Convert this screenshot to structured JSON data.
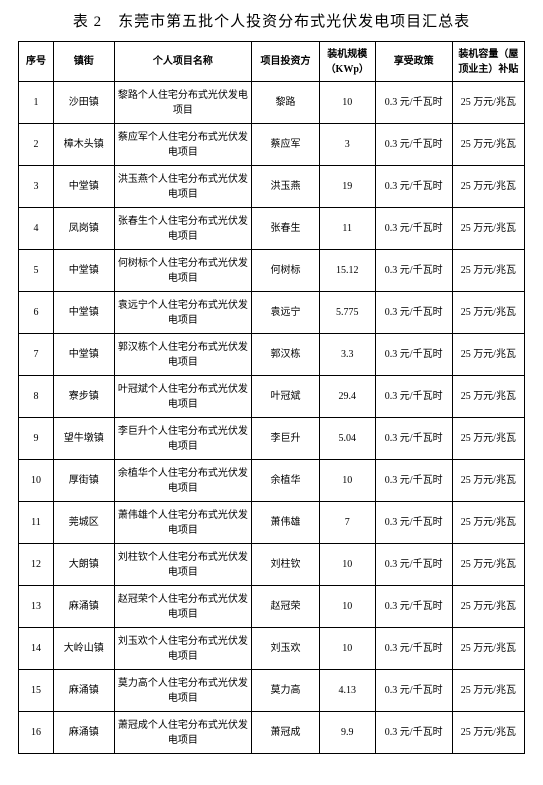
{
  "title": "表 2　东莞市第五批个人投资分布式光伏发电项目汇总表",
  "columns": [
    "序号",
    "镇街",
    "个人项目名称",
    "项目投资方",
    "装机规模（KWp）",
    "享受政策",
    "装机容量（屋顶业主）补贴"
  ],
  "rows": [
    {
      "seq": "1",
      "town": "沙田镇",
      "name": "黎路个人住宅分布式光伏发电项目",
      "investor": "黎路",
      "cap": "10",
      "policy": "0.3 元/千瓦时",
      "subsidy": "25 万元/兆瓦"
    },
    {
      "seq": "2",
      "town": "樟木头镇",
      "name": "蔡应军个人住宅分布式光伏发电项目",
      "investor": "蔡应军",
      "cap": "3",
      "policy": "0.3 元/千瓦时",
      "subsidy": "25 万元/兆瓦"
    },
    {
      "seq": "3",
      "town": "中堂镇",
      "name": "洪玉燕个人住宅分布式光伏发电项目",
      "investor": "洪玉燕",
      "cap": "19",
      "policy": "0.3 元/千瓦时",
      "subsidy": "25 万元/兆瓦"
    },
    {
      "seq": "4",
      "town": "凤岗镇",
      "name": "张春生个人住宅分布式光伏发电项目",
      "investor": "张春生",
      "cap": "11",
      "policy": "0.3 元/千瓦时",
      "subsidy": "25 万元/兆瓦"
    },
    {
      "seq": "5",
      "town": "中堂镇",
      "name": "何树标个人住宅分布式光伏发电项目",
      "investor": "何树标",
      "cap": "15.12",
      "policy": "0.3 元/千瓦时",
      "subsidy": "25 万元/兆瓦"
    },
    {
      "seq": "6",
      "town": "中堂镇",
      "name": "袁远宁个人住宅分布式光伏发电项目",
      "investor": "袁远宁",
      "cap": "5.775",
      "policy": "0.3 元/千瓦时",
      "subsidy": "25 万元/兆瓦"
    },
    {
      "seq": "7",
      "town": "中堂镇",
      "name": "郭汉栋个人住宅分布式光伏发电项目",
      "investor": "郭汉栋",
      "cap": "3.3",
      "policy": "0.3 元/千瓦时",
      "subsidy": "25 万元/兆瓦"
    },
    {
      "seq": "8",
      "town": "寮步镇",
      "name": "叶冠斌个人住宅分布式光伏发电项目",
      "investor": "叶冠斌",
      "cap": "29.4",
      "policy": "0.3 元/千瓦时",
      "subsidy": "25 万元/兆瓦"
    },
    {
      "seq": "9",
      "town": "望牛墩镇",
      "name": "李巨升个人住宅分布式光伏发电项目",
      "investor": "李巨升",
      "cap": "5.04",
      "policy": "0.3 元/千瓦时",
      "subsidy": "25 万元/兆瓦"
    },
    {
      "seq": "10",
      "town": "厚街镇",
      "name": "余植华个人住宅分布式光伏发电项目",
      "investor": "余植华",
      "cap": "10",
      "policy": "0.3 元/千瓦时",
      "subsidy": "25 万元/兆瓦"
    },
    {
      "seq": "11",
      "town": "莞城区",
      "name": "萧伟雄个人住宅分布式光伏发电项目",
      "investor": "萧伟雄",
      "cap": "7",
      "policy": "0.3 元/千瓦时",
      "subsidy": "25 万元/兆瓦"
    },
    {
      "seq": "12",
      "town": "大朗镇",
      "name": "刘柱钦个人住宅分布式光伏发电项目",
      "investor": "刘柱钦",
      "cap": "10",
      "policy": "0.3 元/千瓦时",
      "subsidy": "25 万元/兆瓦"
    },
    {
      "seq": "13",
      "town": "麻涌镇",
      "name": "赵冠荣个人住宅分布式光伏发电项目",
      "investor": "赵冠荣",
      "cap": "10",
      "policy": "0.3 元/千瓦时",
      "subsidy": "25 万元/兆瓦"
    },
    {
      "seq": "14",
      "town": "大岭山镇",
      "name": "刘玉欢个人住宅分布式光伏发电项目",
      "investor": "刘玉欢",
      "cap": "10",
      "policy": "0.3 元/千瓦时",
      "subsidy": "25 万元/兆瓦"
    },
    {
      "seq": "15",
      "town": "麻涌镇",
      "name": "莫力高个人住宅分布式光伏发电项目",
      "investor": "莫力高",
      "cap": "4.13",
      "policy": "0.3 元/千瓦时",
      "subsidy": "25 万元/兆瓦"
    },
    {
      "seq": "16",
      "town": "麻涌镇",
      "name": "萧冠成个人住宅分布式光伏发电项目",
      "investor": "萧冠成",
      "cap": "9.9",
      "policy": "0.3 元/千瓦时",
      "subsidy": "25 万元/兆瓦"
    }
  ]
}
